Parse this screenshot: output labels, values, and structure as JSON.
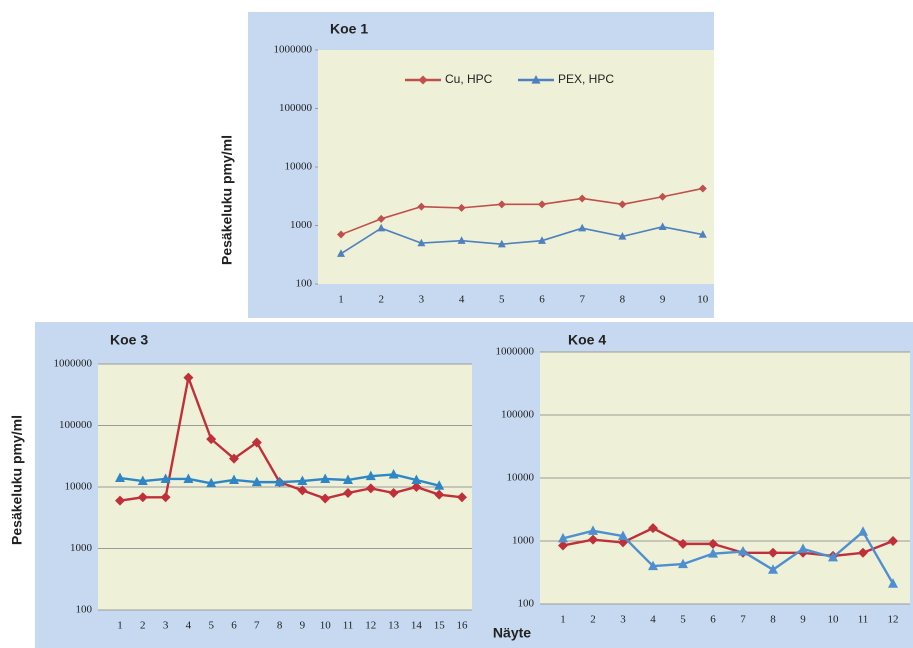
{
  "chart_data": [
    {
      "type": "line",
      "title": "Koe 1",
      "y_label": "Pesäkeluku pmy/ml",
      "log_scale": true,
      "grid": false,
      "legend": "top",
      "categories": [
        "1",
        "2",
        "3",
        "4",
        "5",
        "6",
        "7",
        "8",
        "9",
        "10"
      ],
      "ylim": [
        100,
        1000000
      ],
      "yticks": [
        100,
        1000,
        10000,
        100000,
        1000000
      ],
      "series": [
        {
          "name": "Cu, HPC",
          "color": "#c0504d",
          "marker": "diamond",
          "values": [
            700,
            1300,
            2100,
            2000,
            2300,
            2300,
            2900,
            2300,
            3100,
            4300
          ]
        },
        {
          "name": "PEX, HPC",
          "color": "#4f81bd",
          "marker": "triangle",
          "values": [
            330,
            900,
            500,
            550,
            480,
            550,
            900,
            650,
            950,
            700
          ]
        }
      ]
    },
    {
      "type": "line",
      "title": "Koe 3",
      "y_label": "Pesäkeluku pmy/ml",
      "log_scale": true,
      "grid": true,
      "categories": [
        "1",
        "2",
        "3",
        "4",
        "5",
        "6",
        "7",
        "8",
        "9",
        "10",
        "11",
        "12",
        "13",
        "14",
        "15",
        "16"
      ],
      "ylim": [
        100,
        1000000
      ],
      "yticks": [
        100,
        1000,
        10000,
        100000,
        1000000
      ],
      "series": [
        {
          "color": "#c0303a",
          "marker": "diamond",
          "values": [
            6000,
            6800,
            6800,
            600000,
            60000,
            29000,
            53000,
            12000,
            8800,
            6500,
            8000,
            9500,
            8000,
            10000,
            7500,
            6800
          ]
        },
        {
          "color": "#2f86c4",
          "marker": "triangle",
          "values": [
            14000,
            12500,
            13500,
            13500,
            11500,
            13000,
            12000,
            12000,
            12500,
            13500,
            13000,
            15000,
            16000,
            13000,
            10500,
            null
          ]
        }
      ]
    },
    {
      "type": "line",
      "title": "Koe 4",
      "x_label": "Näyte",
      "log_scale": true,
      "grid": true,
      "categories": [
        "1",
        "2",
        "3",
        "4",
        "5",
        "6",
        "7",
        "8",
        "9",
        "10",
        "11",
        "12"
      ],
      "ylim": [
        100,
        1000000
      ],
      "yticks": [
        100,
        1000,
        10000,
        100000,
        1000000
      ],
      "series": [
        {
          "color": "#c0303a",
          "marker": "diamond",
          "values": [
            850,
            1050,
            950,
            1600,
            900,
            900,
            650,
            650,
            650,
            580,
            650,
            1000
          ]
        },
        {
          "color": "#4f8fcf",
          "marker": "triangle",
          "values": [
            1100,
            1450,
            1200,
            400,
            430,
            630,
            680,
            350,
            750,
            550,
            1400,
            210
          ]
        }
      ]
    }
  ]
}
